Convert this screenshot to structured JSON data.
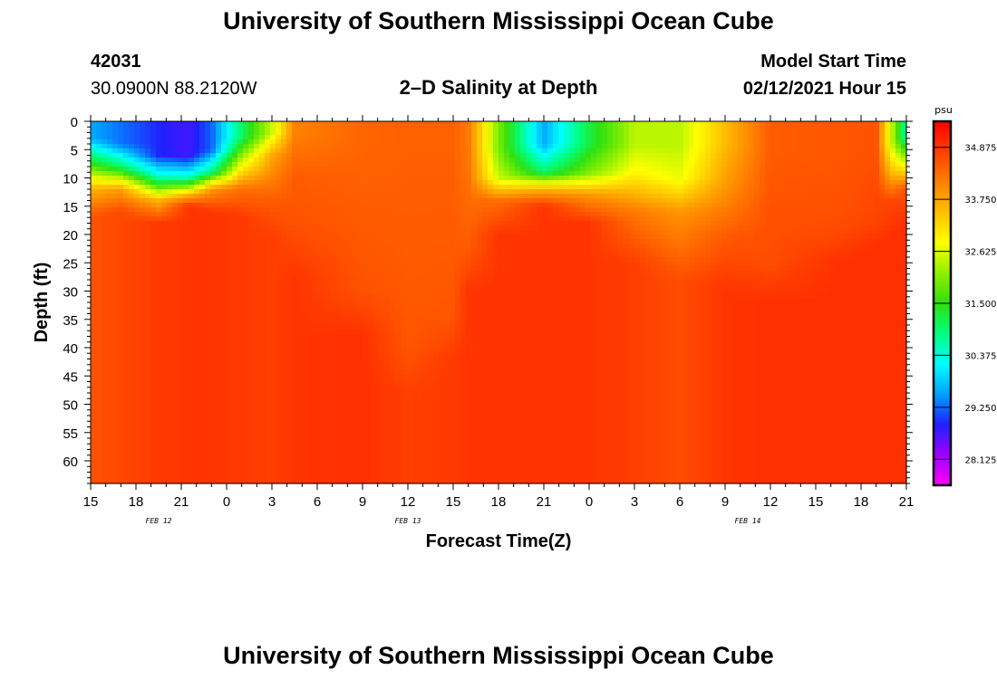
{
  "page": {
    "title_top": "University of Southern Mississippi Ocean Cube",
    "title_bottom": "University of Southern Mississippi Ocean Cube",
    "station_id": "42031",
    "station_coords": "30.0900N 88.2120W",
    "plot_title": "2–D Salinity at Depth",
    "model_start_label": "Model Start Time",
    "model_start_value": "02/12/2021 Hour 15"
  },
  "chart_data": {
    "type": "heatmap",
    "title": "2–D Salinity at Depth",
    "xlabel": "Forecast Time(Z)",
    "ylabel": "Depth (ft)",
    "x_tick_labels": [
      "15",
      "18",
      "21",
      "0",
      "3",
      "6",
      "9",
      "12",
      "15",
      "18",
      "21",
      "0",
      "3",
      "6",
      "9",
      "12",
      "15",
      "18",
      "21"
    ],
    "x_range_hours": [
      0,
      54
    ],
    "x_step_hours": 3,
    "date_labels": [
      {
        "label": "FEB 12",
        "hour": 4.5
      },
      {
        "label": "FEB 13",
        "hour": 21
      },
      {
        "label": "FEB 14",
        "hour": 43.5
      }
    ],
    "y_tick_labels": [
      "0",
      "5",
      "10",
      "15",
      "20",
      "25",
      "30",
      "35",
      "40",
      "45",
      "50",
      "55",
      "60"
    ],
    "y_range_ft": [
      0,
      64
    ],
    "colorbar": {
      "unit": "psu",
      "min": 27.5625,
      "max": 35.4375,
      "tick_values": [
        "34.875",
        "33.750",
        "32.625",
        "31.500",
        "30.375",
        "29.250",
        "28.125"
      ],
      "colors": [
        "#ff00ff",
        "#a000ff",
        "#2020ff",
        "#00a0ff",
        "#00ffff",
        "#00ff80",
        "#30e010",
        "#90f000",
        "#ffff00",
        "#ffc000",
        "#ff8000",
        "#ff4000",
        "#ff0000"
      ]
    },
    "time_profiles": [
      {
        "h": 0,
        "s": [
          29.6,
          31.3,
          33.6,
          34.6
        ],
        "d": [
          3,
          7,
          12,
          17
        ]
      },
      {
        "h": 2,
        "s": [
          29.3,
          31.0,
          33.8,
          34.7
        ],
        "d": [
          4,
          8,
          12,
          16
        ]
      },
      {
        "h": 4.5,
        "s": [
          28.9,
          30.6,
          33.6,
          34.85
        ],
        "d": [
          6,
          10,
          14,
          18
        ]
      },
      {
        "h": 6.5,
        "s": [
          28.7,
          30.5,
          33.6,
          34.9
        ],
        "d": [
          6,
          10,
          13,
          15
        ]
      },
      {
        "h": 8,
        "s": [
          29.2,
          30.9,
          33.9,
          34.9
        ],
        "d": [
          5,
          9,
          12,
          16
        ]
      },
      {
        "h": 10,
        "s": [
          31.0,
          32.5,
          34.3,
          34.85
        ],
        "d": [
          3,
          7,
          12,
          17
        ]
      },
      {
        "h": 12,
        "s": [
          32.5,
          33.7,
          34.5,
          34.8
        ],
        "d": [
          2,
          6,
          14,
          20
        ]
      },
      {
        "h": 13.5,
        "s": [
          34.1,
          34.5,
          34.6,
          34.9
        ],
        "d": [
          2,
          10,
          18,
          28
        ]
      },
      {
        "h": 18,
        "s": [
          34.4,
          34.5,
          34.6,
          34.95
        ],
        "d": [
          4,
          16,
          30,
          38
        ]
      },
      {
        "h": 21,
        "s": [
          34.45,
          34.5,
          34.55,
          34.8
        ],
        "d": [
          4,
          20,
          40,
          48
        ]
      },
      {
        "h": 24,
        "s": [
          34.45,
          34.5,
          34.55,
          34.85
        ],
        "d": [
          4,
          18,
          34,
          42
        ]
      },
      {
        "h": 25,
        "s": [
          34.2,
          34.3,
          34.5,
          34.9
        ],
        "d": [
          4,
          12,
          22,
          30
        ]
      },
      {
        "h": 27,
        "s": [
          32.0,
          32.5,
          34.3,
          34.9
        ],
        "d": [
          5,
          10,
          14,
          20
        ]
      },
      {
        "h": 30,
        "s": [
          29.6,
          31.0,
          33.6,
          34.9
        ],
        "d": [
          4,
          9,
          12,
          15
        ]
      },
      {
        "h": 33,
        "s": [
          31.2,
          32.0,
          33.9,
          34.9
        ],
        "d": [
          4,
          9,
          13,
          18
        ]
      },
      {
        "h": 36,
        "s": [
          32.4,
          32.9,
          34.2,
          34.8
        ],
        "d": [
          4,
          9,
          16,
          25
        ]
      },
      {
        "h": 39,
        "s": [
          32.4,
          32.7,
          33.9,
          34.65
        ],
        "d": [
          4,
          10,
          16,
          28
        ]
      },
      {
        "h": 42,
        "s": [
          33.5,
          33.9,
          34.5,
          34.9
        ],
        "d": [
          4,
          12,
          20,
          30
        ]
      },
      {
        "h": 45,
        "s": [
          34.5,
          34.6,
          34.65,
          34.95
        ],
        "d": [
          5,
          15,
          25,
          32
        ]
      },
      {
        "h": 49.5,
        "s": [
          34.55,
          34.6,
          34.7,
          34.95
        ],
        "d": [
          5,
          15,
          20,
          25
        ]
      },
      {
        "h": 52,
        "s": [
          34.6,
          34.7,
          34.75,
          34.95
        ],
        "d": [
          5,
          12,
          18,
          22
        ]
      },
      {
        "h": 53,
        "s": [
          32.5,
          33.5,
          34.7,
          34.95
        ],
        "d": [
          4,
          9,
          14,
          20
        ]
      },
      {
        "h": 54,
        "s": [
          30.6,
          32.4,
          34.6,
          34.95
        ],
        "d": [
          3,
          7,
          12,
          18
        ]
      }
    ]
  }
}
